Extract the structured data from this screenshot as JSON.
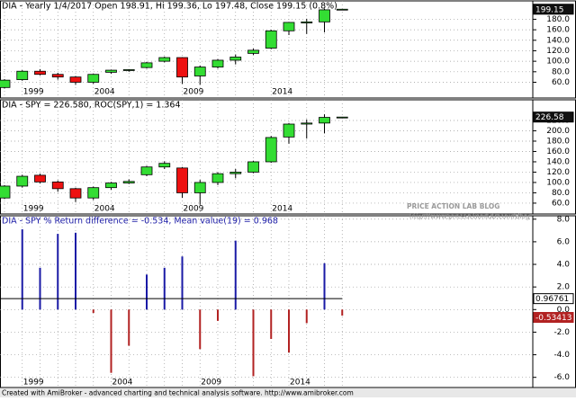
{
  "chart_data": [
    {
      "type": "candlestick",
      "title": "DIA - Yearly 1/4/2017 Open 198.91, Hi 199.36, Lo 197.48, Close 199.15 (0.8%)",
      "categories": [
        null,
        "1999",
        null,
        null,
        null,
        "2004",
        null,
        null,
        null,
        null,
        "2009",
        null,
        null,
        null,
        null,
        "2014",
        null,
        null,
        null,
        null
      ],
      "open": [
        50,
        65,
        81,
        75,
        70,
        60,
        79,
        83,
        88,
        100,
        107,
        72,
        89,
        102,
        115,
        125,
        158,
        173,
        175,
        198.91
      ],
      "high": [
        66,
        83,
        85,
        78,
        72,
        76,
        84,
        85,
        99,
        109,
        108,
        92,
        104,
        113,
        124,
        160,
        175,
        181,
        200,
        199.36
      ],
      "low": [
        48,
        63,
        73,
        65,
        55,
        57,
        76,
        80,
        86,
        98,
        57,
        55,
        86,
        94,
        112,
        123,
        150,
        152,
        155,
        197.48
      ],
      "close": [
        64,
        81,
        75,
        70,
        60,
        75,
        83,
        84,
        97,
        107,
        70,
        89,
        102,
        108,
        121,
        158,
        174,
        175,
        198,
        199.15
      ],
      "up_color": "#33dd33",
      "down_color": "#ee1111",
      "ylim": [
        30,
        215
      ],
      "yticks": [
        {
          "value": 60,
          "label": "60.0"
        },
        {
          "value": 80,
          "label": "80.0"
        },
        {
          "value": 100,
          "label": "100.0"
        },
        {
          "value": 120,
          "label": "120.0"
        },
        {
          "value": 140,
          "label": "140.0"
        },
        {
          "value": 160,
          "label": "160.0"
        },
        {
          "value": 180,
          "label": "180.0"
        }
      ],
      "grid": true
    },
    {
      "type": "candlestick",
      "title": "DIA - SPY = 226.580, ROC(SPY,1) = 1.364",
      "categories": [
        null,
        "1999",
        null,
        null,
        null,
        "2004",
        null,
        null,
        null,
        null,
        "2009",
        null,
        null,
        null,
        null,
        "2014",
        null,
        null,
        null,
        null
      ],
      "open": [
        70,
        93,
        114,
        101,
        88,
        70,
        90,
        99,
        115,
        130,
        128,
        80,
        100,
        117,
        120,
        140,
        188,
        213,
        215,
        226
      ],
      "high": [
        95,
        115,
        117,
        104,
        90,
        92,
        101,
        106,
        132,
        141,
        130,
        105,
        120,
        126,
        142,
        190,
        215,
        222,
        232,
        227
      ],
      "low": [
        68,
        90,
        98,
        82,
        62,
        66,
        86,
        97,
        112,
        126,
        70,
        57,
        95,
        108,
        118,
        138,
        175,
        185,
        195,
        225
      ],
      "close": [
        93,
        112,
        101,
        88,
        70,
        90,
        99,
        102,
        130,
        137,
        80,
        100,
        117,
        120,
        140,
        187,
        213,
        215,
        226,
        226.58
      ],
      "up_color": "#33dd33",
      "down_color": "#ee1111",
      "ylim": [
        39,
        260
      ],
      "yticks": [
        {
          "value": 60,
          "label": "60.0"
        },
        {
          "value": 80,
          "label": "80.0"
        },
        {
          "value": 100,
          "label": "100.0"
        },
        {
          "value": 120,
          "label": "120.0"
        },
        {
          "value": 140,
          "label": "140.0"
        },
        {
          "value": 160,
          "label": "160.0"
        },
        {
          "value": 180,
          "label": "180.0"
        },
        {
          "value": 200,
          "label": "200.0"
        },
        {
          "value": 220,
          "label": "220.0"
        }
      ],
      "grid": true
    },
    {
      "type": "bar",
      "title": "DIA - SPY  % Return difference = -0.534,   Mean value(19) = 0.968",
      "categories": [
        "1999",
        null,
        null,
        null,
        null,
        "2004",
        null,
        null,
        null,
        null,
        "2009",
        null,
        null,
        null,
        null,
        "2014",
        null,
        null,
        null
      ],
      "values": [
        7.1,
        3.7,
        6.7,
        6.8,
        -0.3,
        -5.6,
        -3.2,
        3.1,
        3.7,
        4.7,
        -3.5,
        -1.0,
        6.1,
        -5.9,
        -2.6,
        -3.8,
        -1.2,
        4.1,
        -0.53413
      ],
      "mean": 0.96761,
      "up_color": "#1a1aa6",
      "down_color": "#b22222",
      "mean_color": "#000000",
      "ylim": [
        -6.9,
        8.3
      ],
      "yticks": [
        {
          "value": -6,
          "label": "-6.0"
        },
        {
          "value": -4,
          "label": "-4.0"
        },
        {
          "value": -2,
          "label": "-2.0"
        },
        {
          "value": 0,
          "label": "0.0"
        },
        {
          "value": 2,
          "label": "2.0"
        },
        {
          "value": 4,
          "label": "4.0"
        },
        {
          "value": 6,
          "label": "6.0"
        },
        {
          "value": 8,
          "label": "8.0"
        }
      ],
      "grid": true
    }
  ],
  "watermark": "PRICE ACTION LAB BLOG",
  "watermark_url": "http://www.priceactionlab.com/Blog",
  "footer": "Created with AmiBroker - advanced charting and technical analysis software. http://www.amibroker.com"
}
